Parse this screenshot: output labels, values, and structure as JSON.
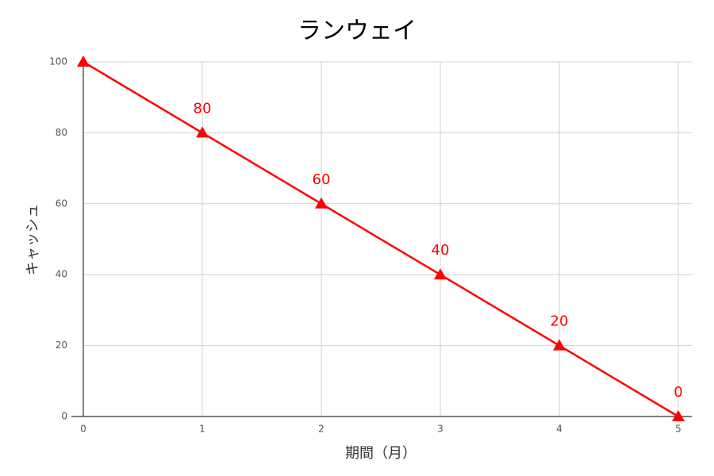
{
  "chart_data": {
    "type": "line",
    "title": "ランウェイ",
    "x_label": "期間（月）",
    "y_label": "キャッシュ",
    "x": [
      0,
      1,
      2,
      3,
      4,
      5
    ],
    "values": [
      100,
      80,
      60,
      40,
      20,
      0
    ],
    "value_labels": [
      null,
      "80",
      "60",
      "40",
      "20",
      "0"
    ],
    "color": "#ff0000",
    "marker": "triangle",
    "xlim": [
      0,
      5
    ],
    "xticks": [
      0,
      1,
      2,
      3,
      4,
      5
    ],
    "ylim": [
      0,
      100
    ],
    "yticks": [
      0,
      20,
      40,
      60,
      80,
      100
    ],
    "grid": true
  }
}
